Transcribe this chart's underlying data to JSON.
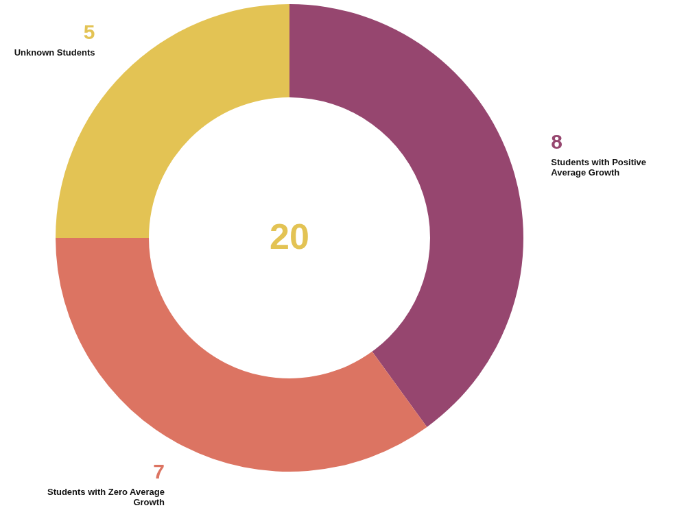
{
  "chart_data": {
    "type": "donut",
    "categories": [
      "Students with Positive Average Growth",
      "Students with Zero Average Growth",
      "Unknown Students"
    ],
    "values": [
      8,
      7,
      5
    ],
    "colors": [
      "#96466f",
      "#dc7462",
      "#e3c354"
    ],
    "data_labels": true,
    "annotations": [
      "20"
    ]
  }
}
